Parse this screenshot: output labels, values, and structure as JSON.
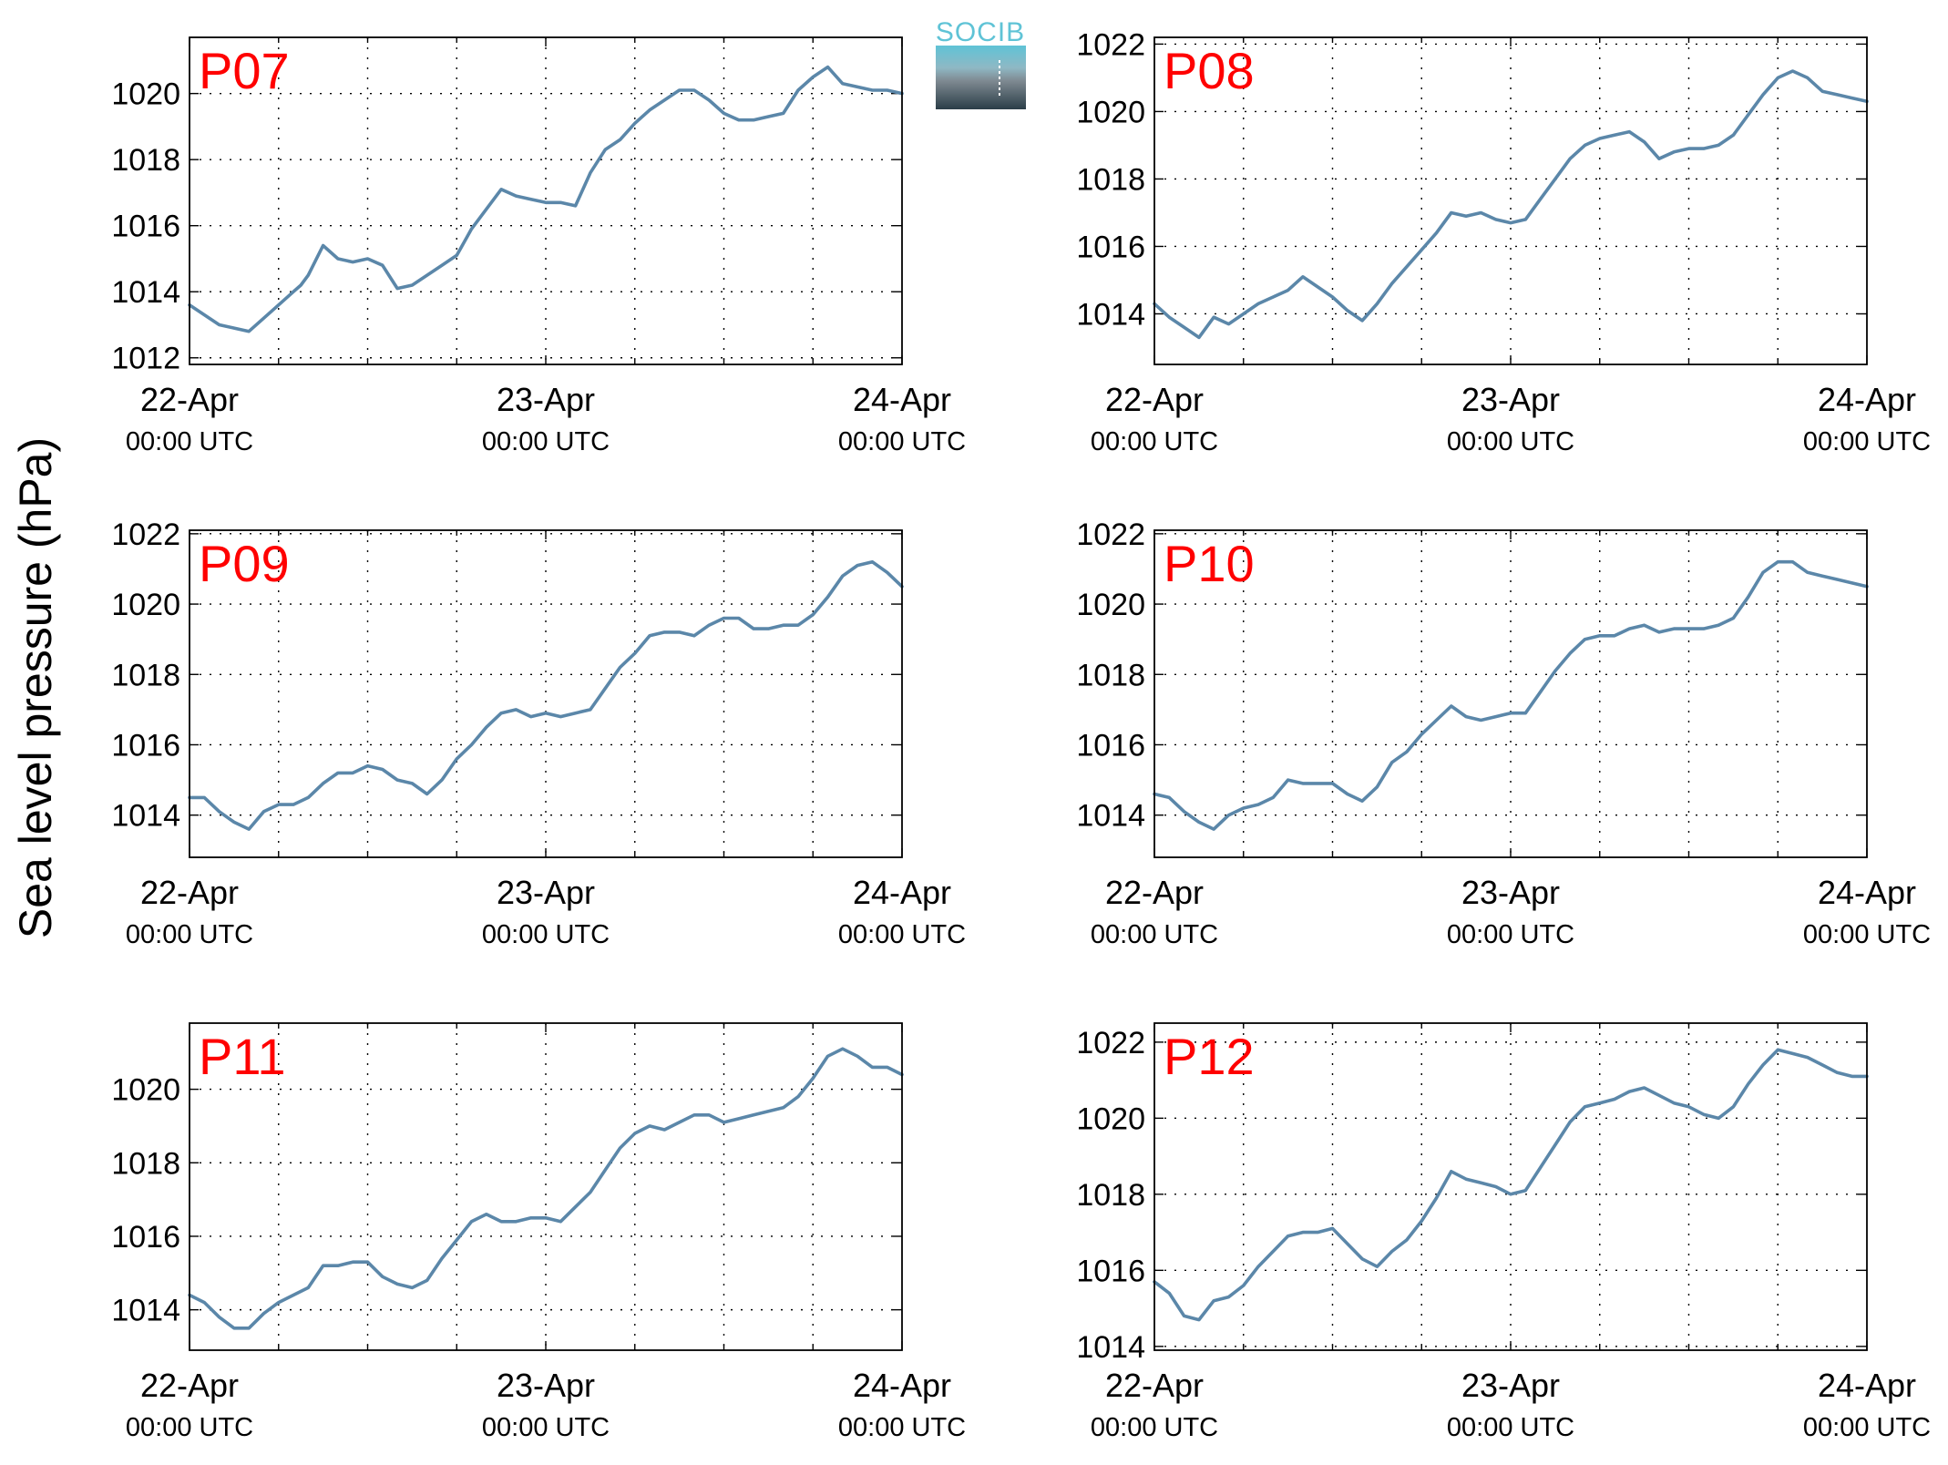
{
  "ylabel": "Sea level pressure (hPa)",
  "logo_text": "SOCIB",
  "series_color": "#5b87a9",
  "label_color": "#ff0000",
  "x_tick_labels": [
    {
      "date": "22-Apr",
      "time": "00:00 UTC"
    },
    {
      "date": "23-Apr",
      "time": "00:00 UTC"
    },
    {
      "date": "24-Apr",
      "time": "00:00 UTC"
    }
  ],
  "chart_data": [
    {
      "type": "line",
      "title": "P07",
      "xlim": [
        0,
        48
      ],
      "ylim": [
        1011.8,
        1021.7
      ],
      "yticks": [
        1012,
        1014,
        1016,
        1018,
        1020
      ],
      "grid": true,
      "series": [
        {
          "x": [
            0,
            1,
            2,
            3,
            4,
            5,
            6,
            7,
            7.5,
            8,
            9,
            10,
            11,
            12,
            13,
            14,
            15,
            16,
            17,
            18,
            19,
            20,
            21,
            22,
            23,
            24,
            25,
            26,
            27,
            28,
            29,
            30,
            31,
            32,
            33,
            34,
            35,
            36,
            37,
            38,
            39,
            40,
            41,
            42,
            43,
            44,
            45,
            46,
            47,
            48
          ],
          "values": [
            1013.6,
            1013.3,
            1013,
            1012.9,
            1012.8,
            1013.2,
            1013.6,
            1014,
            1014.2,
            1014.5,
            1015.4,
            1015,
            1014.9,
            1015,
            1014.8,
            1014.1,
            1014.2,
            1014.5,
            1014.8,
            1015.1,
            1015.9,
            1016.5,
            1017.1,
            1016.9,
            1016.8,
            1016.7,
            1016.7,
            1016.6,
            1017.6,
            1018.3,
            1018.6,
            1019.1,
            1019.5,
            1019.8,
            1020.1,
            1020.1,
            1019.8,
            1019.4,
            1019.2,
            1019.2,
            1019.3,
            1019.4,
            1020.1,
            1020.5,
            1020.8,
            1020.3,
            1020.2,
            1020.1,
            1020.1,
            1020
          ]
        }
      ]
    },
    {
      "type": "line",
      "title": "P08",
      "xlim": [
        0,
        48
      ],
      "ylim": [
        1012.5,
        1022.2
      ],
      "yticks": [
        1014,
        1016,
        1018,
        1020,
        1022
      ],
      "grid": true,
      "series": [
        {
          "x": [
            0,
            1,
            2,
            3,
            4,
            5,
            6,
            7,
            8,
            9,
            10,
            11,
            12,
            13,
            14,
            15,
            16,
            17,
            18,
            19,
            20,
            21,
            22,
            23,
            24,
            25,
            26,
            27,
            28,
            29,
            30,
            31,
            32,
            33,
            34,
            35,
            36,
            37,
            38,
            39,
            40,
            41,
            42,
            43,
            44,
            45,
            46,
            47,
            48
          ],
          "values": [
            1014.3,
            1013.9,
            1013.6,
            1013.3,
            1013.9,
            1013.7,
            1014,
            1014.3,
            1014.5,
            1014.7,
            1015.1,
            1014.8,
            1014.5,
            1014.1,
            1013.8,
            1014.3,
            1014.9,
            1015.4,
            1015.9,
            1016.4,
            1017,
            1016.9,
            1017,
            1016.8,
            1016.7,
            1016.8,
            1017.4,
            1018,
            1018.6,
            1019,
            1019.2,
            1019.3,
            1019.4,
            1019.1,
            1018.6,
            1018.8,
            1018.9,
            1018.9,
            1019,
            1019.3,
            1019.9,
            1020.5,
            1021,
            1021.2,
            1021,
            1020.6,
            1020.5,
            1020.4,
            1020.3
          ]
        }
      ]
    },
    {
      "type": "line",
      "title": "P09",
      "xlim": [
        0,
        48
      ],
      "ylim": [
        1012.8,
        1022.1
      ],
      "yticks": [
        1014,
        1016,
        1018,
        1020,
        1022
      ],
      "grid": true,
      "series": [
        {
          "x": [
            0,
            1,
            2,
            3,
            4,
            5,
            6,
            7,
            8,
            9,
            10,
            11,
            12,
            13,
            14,
            15,
            16,
            17,
            18,
            19,
            20,
            21,
            22,
            23,
            24,
            25,
            26,
            27,
            28,
            29,
            30,
            31,
            32,
            33,
            34,
            35,
            36,
            37,
            38,
            39,
            40,
            41,
            42,
            43,
            44,
            45,
            46,
            47,
            48
          ],
          "values": [
            1014.5,
            1014.5,
            1014.1,
            1013.8,
            1013.6,
            1014.1,
            1014.3,
            1014.3,
            1014.5,
            1014.9,
            1015.2,
            1015.2,
            1015.4,
            1015.3,
            1015,
            1014.9,
            1014.6,
            1015,
            1015.6,
            1016,
            1016.5,
            1016.9,
            1017,
            1016.8,
            1016.9,
            1016.8,
            1016.9,
            1017,
            1017.6,
            1018.2,
            1018.6,
            1019.1,
            1019.2,
            1019.2,
            1019.1,
            1019.4,
            1019.6,
            1019.6,
            1019.3,
            1019.3,
            1019.4,
            1019.4,
            1019.7,
            1020.2,
            1020.8,
            1021.1,
            1021.2,
            1020.9,
            1020.5
          ]
        }
      ]
    },
    {
      "type": "line",
      "title": "P10",
      "xlim": [
        0,
        48
      ],
      "ylim": [
        1012.8,
        1022.1
      ],
      "yticks": [
        1014,
        1016,
        1018,
        1020,
        1022
      ],
      "grid": true,
      "series": [
        {
          "x": [
            0,
            1,
            2,
            3,
            4,
            5,
            6,
            7,
            8,
            9,
            10,
            11,
            12,
            13,
            14,
            15,
            16,
            17,
            18,
            19,
            20,
            21,
            22,
            23,
            24,
            25,
            26,
            27,
            28,
            29,
            30,
            31,
            32,
            33,
            34,
            35,
            36,
            37,
            38,
            39,
            40,
            41,
            42,
            43,
            44,
            45,
            46,
            47,
            48
          ],
          "values": [
            1014.6,
            1014.5,
            1014.1,
            1013.8,
            1013.6,
            1014,
            1014.2,
            1014.3,
            1014.5,
            1015,
            1014.9,
            1014.9,
            1014.9,
            1014.6,
            1014.4,
            1014.8,
            1015.5,
            1015.8,
            1016.3,
            1016.7,
            1017.1,
            1016.8,
            1016.7,
            1016.8,
            1016.9,
            1016.9,
            1017.5,
            1018.1,
            1018.6,
            1019,
            1019.1,
            1019.1,
            1019.3,
            1019.4,
            1019.2,
            1019.3,
            1019.3,
            1019.3,
            1019.4,
            1019.6,
            1020.2,
            1020.9,
            1021.2,
            1021.2,
            1020.9,
            1020.8,
            1020.7,
            1020.6,
            1020.5
          ]
        }
      ]
    },
    {
      "type": "line",
      "title": "P11",
      "xlim": [
        0,
        48
      ],
      "ylim": [
        1012.9,
        1021.8
      ],
      "yticks": [
        1014,
        1016,
        1018,
        1020
      ],
      "grid": true,
      "series": [
        {
          "x": [
            0,
            1,
            2,
            3,
            4,
            5,
            6,
            7,
            8,
            9,
            10,
            11,
            12,
            13,
            14,
            15,
            16,
            17,
            18,
            19,
            20,
            21,
            22,
            23,
            24,
            25,
            26,
            27,
            28,
            29,
            30,
            31,
            32,
            33,
            34,
            35,
            36,
            37,
            38,
            39,
            40,
            41,
            42,
            43,
            44,
            45,
            46,
            47,
            48
          ],
          "values": [
            1014.4,
            1014.2,
            1013.8,
            1013.5,
            1013.5,
            1013.9,
            1014.2,
            1014.4,
            1014.6,
            1015.2,
            1015.2,
            1015.3,
            1015.3,
            1014.9,
            1014.7,
            1014.6,
            1014.8,
            1015.4,
            1015.9,
            1016.4,
            1016.6,
            1016.4,
            1016.4,
            1016.5,
            1016.5,
            1016.4,
            1016.8,
            1017.2,
            1017.8,
            1018.4,
            1018.8,
            1019,
            1018.9,
            1019.1,
            1019.3,
            1019.3,
            1019.1,
            1019.2,
            1019.3,
            1019.4,
            1019.5,
            1019.8,
            1020.3,
            1020.9,
            1021.1,
            1020.9,
            1020.6,
            1020.6,
            1020.4
          ]
        }
      ]
    },
    {
      "type": "line",
      "title": "P12",
      "xlim": [
        0,
        48
      ],
      "ylim": [
        1013.9,
        1022.5
      ],
      "yticks": [
        1014,
        1016,
        1018,
        1020,
        1022
      ],
      "grid": true,
      "series": [
        {
          "x": [
            0,
            1,
            2,
            3,
            4,
            5,
            6,
            7,
            8,
            9,
            10,
            11,
            12,
            13,
            14,
            15,
            16,
            17,
            18,
            19,
            20,
            21,
            22,
            23,
            24,
            25,
            26,
            27,
            28,
            29,
            30,
            31,
            32,
            33,
            34,
            35,
            36,
            37,
            38,
            39,
            40,
            41,
            42,
            43,
            44,
            45,
            46,
            47,
            48
          ],
          "values": [
            1015.7,
            1015.4,
            1014.8,
            1014.7,
            1015.2,
            1015.3,
            1015.6,
            1016.1,
            1016.5,
            1016.9,
            1017,
            1017,
            1017.1,
            1016.7,
            1016.3,
            1016.1,
            1016.5,
            1016.8,
            1017.3,
            1017.9,
            1018.6,
            1018.4,
            1018.3,
            1018.2,
            1018,
            1018.1,
            1018.7,
            1019.3,
            1019.9,
            1020.3,
            1020.4,
            1020.5,
            1020.7,
            1020.8,
            1020.6,
            1020.4,
            1020.3,
            1020.1,
            1020,
            1020.3,
            1020.9,
            1021.4,
            1021.8,
            1021.7,
            1021.6,
            1021.4,
            1021.2,
            1021.1,
            1021.1
          ]
        }
      ]
    }
  ]
}
